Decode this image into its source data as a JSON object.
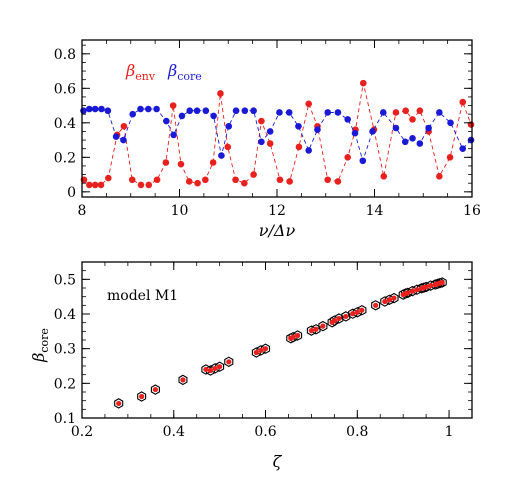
{
  "chart_data": [
    {
      "type": "line",
      "title": "",
      "xlabel": "ν/Δν",
      "ylabel": "",
      "xlim": [
        8,
        16
      ],
      "ylim": [
        -0.03,
        0.88
      ],
      "xticks": [
        "8",
        "10",
        "12",
        "14",
        "16"
      ],
      "yticks": [
        "0",
        "0.2",
        "0.4",
        "0.6",
        "0.8"
      ],
      "legend": {
        "placement": "top-left",
        "entries": [
          {
            "symbol": "β",
            "sub": "env"
          },
          {
            "symbol": "β",
            "sub": "core"
          }
        ]
      },
      "series": [
        {
          "name": "β_env",
          "color": "#e8211f",
          "x": [
            8.04,
            8.15,
            8.27,
            8.39,
            8.54,
            8.72,
            8.86,
            9.03,
            9.21,
            9.37,
            9.54,
            9.72,
            9.87,
            10.03,
            10.2,
            10.37,
            10.53,
            10.69,
            10.84,
            10.99,
            11.15,
            11.33,
            11.52,
            11.68,
            11.86,
            12.06,
            12.26,
            12.45,
            12.65,
            12.83,
            13.04,
            13.25,
            13.45,
            13.61,
            13.77,
            13.99,
            14.19,
            14.44,
            14.64,
            14.78,
            14.93,
            15.11,
            15.33,
            15.55,
            15.81,
            15.98
          ],
          "y": [
            0.07,
            0.04,
            0.04,
            0.04,
            0.08,
            0.33,
            0.38,
            0.07,
            0.04,
            0.04,
            0.07,
            0.17,
            0.5,
            0.16,
            0.06,
            0.05,
            0.07,
            0.17,
            0.57,
            0.26,
            0.07,
            0.05,
            0.1,
            0.41,
            0.28,
            0.07,
            0.06,
            0.26,
            0.51,
            0.38,
            0.07,
            0.06,
            0.2,
            0.36,
            0.63,
            0.36,
            0.09,
            0.46,
            0.47,
            0.42,
            0.47,
            0.35,
            0.09,
            0.2,
            0.52,
            0.39
          ]
        },
        {
          "name": "β_core",
          "color": "#1a1ad6",
          "x": [
            8.03,
            8.15,
            8.27,
            8.4,
            8.53,
            8.7,
            8.85,
            9.04,
            9.2,
            9.36,
            9.53,
            9.73,
            9.88,
            10.05,
            10.21,
            10.36,
            10.54,
            10.7,
            10.86,
            11.01,
            11.16,
            11.34,
            11.52,
            11.68,
            11.86,
            12.05,
            12.25,
            12.44,
            12.65,
            12.83,
            13.04,
            13.25,
            13.45,
            13.6,
            13.76,
            13.96,
            14.18,
            14.44,
            14.63,
            14.78,
            14.93,
            15.11,
            15.33,
            15.56,
            15.81,
            15.98
          ],
          "y": [
            0.47,
            0.48,
            0.48,
            0.48,
            0.47,
            0.32,
            0.3,
            0.45,
            0.48,
            0.48,
            0.48,
            0.41,
            0.33,
            0.44,
            0.47,
            0.47,
            0.47,
            0.44,
            0.21,
            0.38,
            0.47,
            0.47,
            0.47,
            0.29,
            0.35,
            0.46,
            0.46,
            0.38,
            0.24,
            0.36,
            0.46,
            0.46,
            0.42,
            0.34,
            0.18,
            0.35,
            0.46,
            0.37,
            0.29,
            0.31,
            0.28,
            0.37,
            0.46,
            0.4,
            0.25,
            0.3
          ]
        }
      ]
    },
    {
      "type": "scatter",
      "title": "",
      "xlabel": "ζ",
      "ylabel": "β",
      "ylabel_sub": "core",
      "annotation": "model M1",
      "xlim": [
        0.2,
        1.05
      ],
      "ylim": [
        0.1,
        0.55
      ],
      "xticks": [
        "0.2",
        "0.4",
        "0.6",
        "0.8",
        "1"
      ],
      "yticks": [
        "0.1",
        "0.2",
        "0.3",
        "0.4",
        "0.5"
      ],
      "series": [
        {
          "name": "open hexagons",
          "color": "#000000",
          "x": [
            0.28,
            0.33,
            0.36,
            0.42,
            0.47,
            0.48,
            0.49,
            0.5,
            0.52,
            0.58,
            0.59,
            0.6,
            0.655,
            0.66,
            0.67,
            0.7,
            0.71,
            0.725,
            0.745,
            0.75,
            0.76,
            0.775,
            0.79,
            0.8,
            0.81,
            0.84,
            0.86,
            0.87,
            0.88,
            0.9,
            0.905,
            0.91,
            0.92,
            0.93,
            0.94,
            0.945,
            0.95,
            0.96,
            0.97,
            0.975,
            0.98,
            0.985
          ],
          "y": [
            0.142,
            0.162,
            0.182,
            0.21,
            0.24,
            0.237,
            0.243,
            0.248,
            0.262,
            0.289,
            0.295,
            0.3,
            0.33,
            0.333,
            0.338,
            0.352,
            0.356,
            0.365,
            0.376,
            0.381,
            0.387,
            0.393,
            0.401,
            0.405,
            0.411,
            0.425,
            0.436,
            0.441,
            0.446,
            0.456,
            0.459,
            0.461,
            0.466,
            0.47,
            0.474,
            0.476,
            0.478,
            0.482,
            0.485,
            0.487,
            0.489,
            0.491
          ]
        },
        {
          "name": "red dots",
          "color": "#e8211f",
          "x": [
            0.28,
            0.33,
            0.36,
            0.42,
            0.47,
            0.48,
            0.49,
            0.5,
            0.52,
            0.58,
            0.59,
            0.6,
            0.655,
            0.66,
            0.67,
            0.7,
            0.71,
            0.725,
            0.745,
            0.75,
            0.76,
            0.775,
            0.79,
            0.8,
            0.81,
            0.84,
            0.86,
            0.87,
            0.88,
            0.9,
            0.905,
            0.91,
            0.92,
            0.93,
            0.94,
            0.945,
            0.95,
            0.96,
            0.97,
            0.975,
            0.98,
            0.985
          ],
          "y": [
            0.142,
            0.162,
            0.182,
            0.21,
            0.24,
            0.237,
            0.243,
            0.248,
            0.262,
            0.289,
            0.295,
            0.3,
            0.33,
            0.333,
            0.338,
            0.352,
            0.356,
            0.365,
            0.376,
            0.381,
            0.387,
            0.393,
            0.401,
            0.405,
            0.411,
            0.425,
            0.436,
            0.441,
            0.446,
            0.456,
            0.459,
            0.461,
            0.466,
            0.47,
            0.474,
            0.476,
            0.478,
            0.482,
            0.485,
            0.487,
            0.489,
            0.491
          ]
        }
      ]
    }
  ]
}
